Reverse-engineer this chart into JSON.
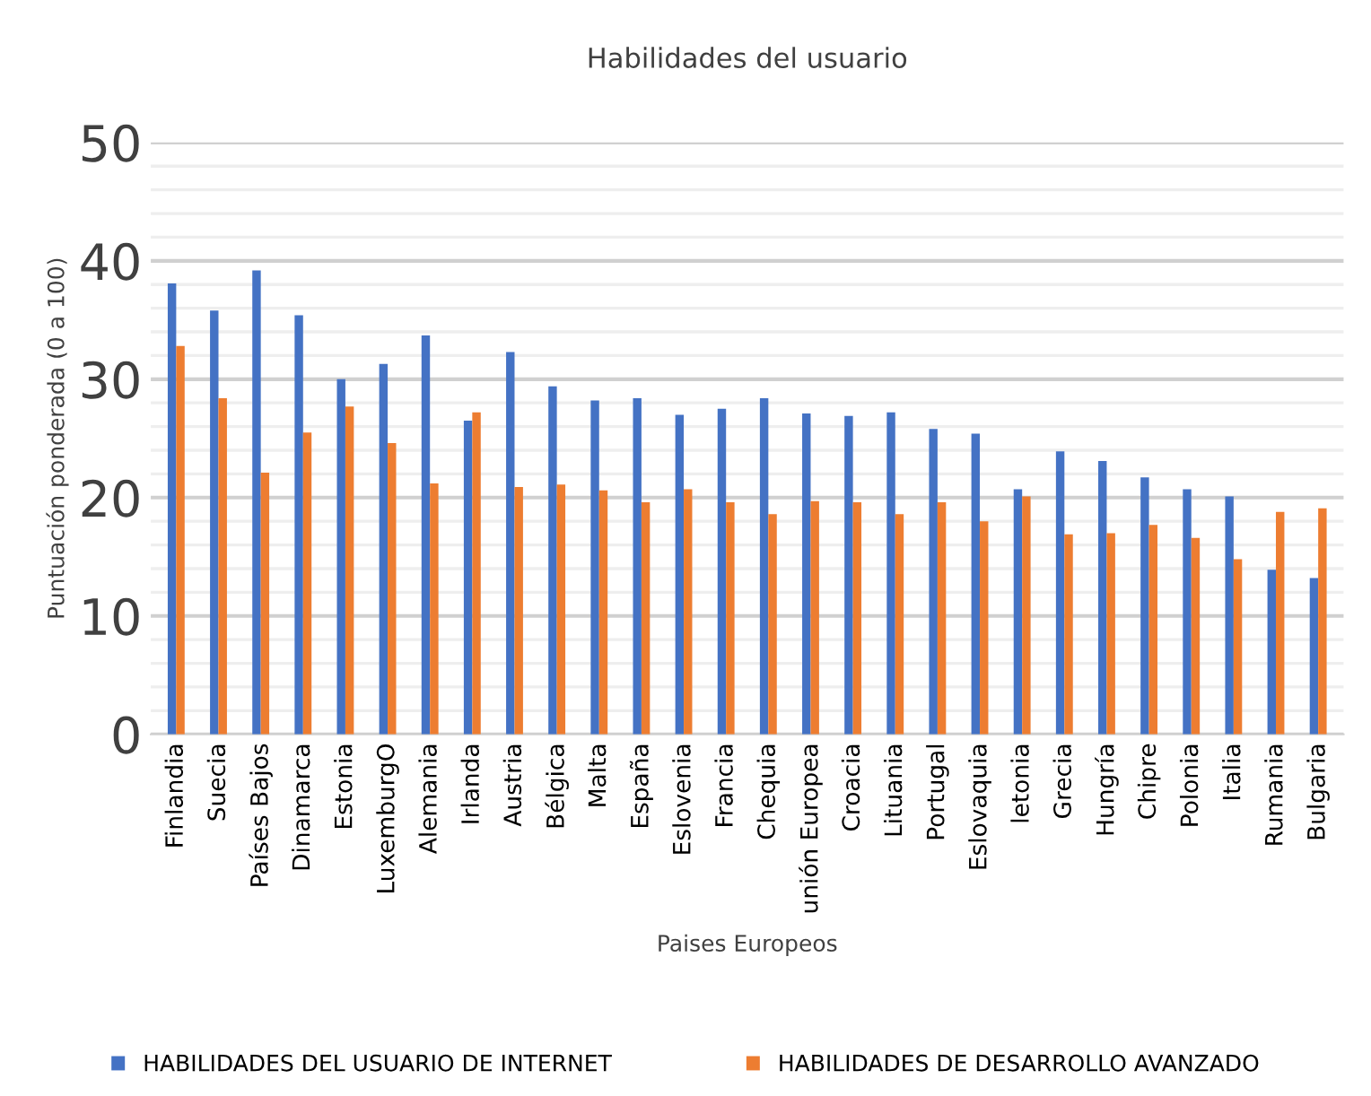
{
  "chart_data": {
    "type": "bar",
    "title": "Habilidades del usuario",
    "xlabel": "Paises Europeos",
    "ylabel": "Puntuación ponderada (0 a 100)",
    "categories": [
      "Finlandia",
      "Suecia",
      "Países Bajos",
      "Dinamarca",
      "Estonia",
      "LuxemburgO",
      "Alemania",
      "Irlanda",
      "Austria",
      "Bélgica",
      "Malta",
      "España",
      "Eslovenia",
      "Francia",
      "Chequia",
      "unión Europea",
      "Croacia",
      "Lituania",
      "Portugal",
      "Eslovaquia",
      "letonia",
      "Grecia",
      "Hungría",
      "Chipre",
      "Polonia",
      "Italia",
      "Rumania",
      "Bulgaria"
    ],
    "series": [
      {
        "name": "HABILIDADES DEL USUARIO DE INTERNET",
        "color": "#4472c4",
        "values": [
          38.1,
          35.8,
          39.2,
          35.4,
          30.0,
          31.3,
          33.7,
          26.5,
          32.3,
          29.4,
          28.2,
          28.4,
          27.0,
          27.5,
          28.4,
          27.1,
          26.9,
          27.2,
          25.8,
          25.4,
          20.7,
          23.9,
          23.1,
          21.7,
          20.7,
          20.1,
          13.9,
          13.2
        ]
      },
      {
        "name": "HABILIDADES DE DESARROLLO AVANZADO",
        "color": "#ed7d31",
        "values": [
          32.8,
          28.4,
          22.1,
          25.5,
          27.7,
          24.6,
          21.2,
          27.2,
          20.9,
          21.1,
          20.6,
          19.6,
          20.7,
          19.6,
          18.6,
          19.7,
          19.6,
          18.6,
          19.6,
          18.0,
          20.1,
          16.9,
          17.0,
          17.7,
          16.6,
          14.8,
          18.8,
          19.1
        ]
      }
    ],
    "ylim": [
      0,
      50
    ],
    "yticks": [
      0,
      10,
      20,
      30,
      40,
      50
    ],
    "grid": "y",
    "legend": "bottom"
  }
}
